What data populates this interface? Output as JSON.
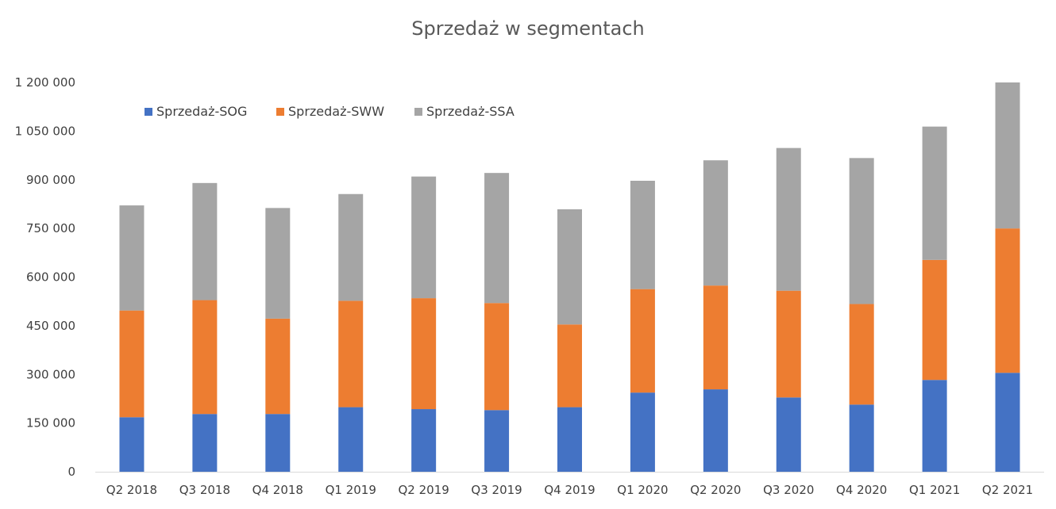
{
  "chart_data": {
    "type": "bar",
    "stacked": true,
    "title": "Sprzedaż w segmentach",
    "xlabel": "",
    "ylabel": "",
    "categories": [
      "Q2 2018",
      "Q3 2018",
      "Q4 2018",
      "Q1 2019",
      "Q2 2019",
      "Q3 2019",
      "Q4 2019",
      "Q1 2020",
      "Q2 2020",
      "Q3 2020",
      "Q4 2020",
      "Q1 2021",
      "Q2 2021"
    ],
    "series": [
      {
        "name": "Sprzedaż-SOG",
        "color": "#4472C4",
        "values": [
          168000,
          178000,
          178000,
          199000,
          193000,
          190000,
          199000,
          244000,
          254000,
          229000,
          207000,
          283000,
          305000
        ]
      },
      {
        "name": "Sprzedaż-SWW",
        "color": "#ED7D31",
        "values": [
          329000,
          351000,
          294000,
          328000,
          342000,
          330000,
          255000,
          319000,
          320000,
          329000,
          310000,
          370000,
          445000
        ]
      },
      {
        "name": "Sprzedaż-SSA",
        "color": "#A5A5A5",
        "values": [
          324000,
          361000,
          341000,
          329000,
          375000,
          401000,
          355000,
          334000,
          386000,
          440000,
          450000,
          411000,
          450000
        ]
      }
    ],
    "ylim": [
      0,
      1200000
    ],
    "yticks": [
      0,
      150000,
      300000,
      450000,
      600000,
      750000,
      900000,
      1050000,
      1200000
    ],
    "ytick_labels": [
      "0",
      "150 000",
      "300 000",
      "450 000",
      "600 000",
      "750 000",
      "900 000",
      "1 050 000",
      "1 200 000"
    ],
    "grid": false,
    "legend_position": "top-left"
  }
}
